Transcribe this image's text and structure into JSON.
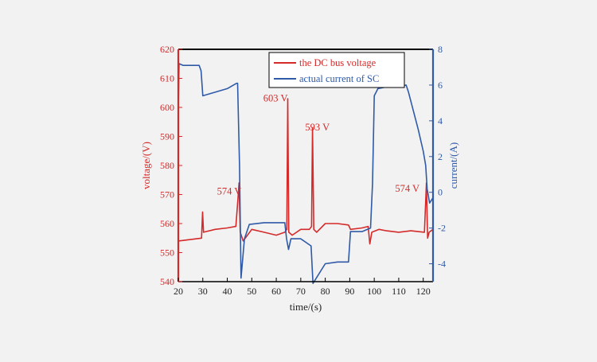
{
  "chart_data": {
    "type": "line",
    "x": {
      "label": "time/(s)",
      "ticks": [
        "20",
        "30",
        "40",
        "50",
        "60",
        "70",
        "80",
        "90",
        "100",
        "110",
        "120"
      ],
      "range": [
        20,
        124
      ]
    },
    "y_left": {
      "label": "voltage/(V)",
      "ticks": [
        "540",
        "550",
        "560",
        "570",
        "580",
        "590",
        "600",
        "610",
        "620"
      ],
      "range": [
        540,
        620
      ],
      "color": "#d42a2a"
    },
    "y_right": {
      "label": "current/(A)",
      "ticks": [
        "-4",
        "-2",
        "0",
        "2",
        "4",
        "6",
        "8"
      ],
      "range": [
        -5,
        8
      ],
      "color": "#2f5aa8"
    },
    "legend": {
      "position": "top-right",
      "items": [
        {
          "label": "the DC bus voltage",
          "color": "#d42a2a"
        },
        {
          "label": "actual current of SC",
          "color": "#2f5aa8"
        }
      ]
    },
    "series": [
      {
        "name": "the DC bus voltage",
        "axis": "left",
        "color": "#d42a2a",
        "x": [
          20,
          29.5,
          29.9,
          30.3,
          35,
          40,
          43.5,
          44.3,
          44.8,
          45.3,
          46.5,
          50,
          55,
          60,
          63.5,
          64.3,
          64.7,
          65.1,
          66.5,
          70,
          73.5,
          74.4,
          74.8,
          75.3,
          76.5,
          80,
          85,
          89.5,
          90.3,
          95,
          97.5,
          98.2,
          99,
          102,
          105,
          110,
          115,
          120.5,
          121.3,
          121.8,
          122.4,
          124
        ],
        "y": [
          554,
          555,
          564,
          557,
          558,
          558.5,
          559,
          568,
          574,
          557,
          554,
          558,
          557,
          556,
          557,
          558,
          603,
          557,
          556,
          558,
          558,
          559,
          593,
          558,
          557,
          560,
          560,
          559.5,
          558,
          558.5,
          559,
          553,
          557,
          558,
          557.5,
          557,
          557.5,
          557,
          574,
          555,
          557,
          558
        ]
      },
      {
        "name": "actual current of SC",
        "axis": "right",
        "color": "#2f5aa8",
        "x": [
          20,
          20.3,
          22,
          28.5,
          29.3,
          30,
          35,
          40,
          43.8,
          44.2,
          45,
          45.6,
          47,
          49,
          55,
          60,
          63.5,
          64.2,
          65,
          66,
          70,
          74.2,
          75,
          80,
          85,
          89.5,
          90.3,
          95,
          98.5,
          99.3,
          100,
          101.5,
          105,
          110,
          113,
          114,
          118,
          120,
          121,
          121.6,
          122.6,
          124
        ],
        "y": [
          4.5,
          7.2,
          7.1,
          7.1,
          6.8,
          5.4,
          5.6,
          5.8,
          6.1,
          6.1,
          1.5,
          -4.8,
          -2.6,
          -1.8,
          -1.7,
          -1.7,
          -1.7,
          -2.6,
          -3.2,
          -2.6,
          -2.6,
          -3.0,
          -5.1,
          -4.0,
          -3.9,
          -3.9,
          -2.2,
          -2.2,
          -2.0,
          0.5,
          5.4,
          5.8,
          5.9,
          5.9,
          6.0,
          5.6,
          3.5,
          2.3,
          1.5,
          0.2,
          -0.6,
          -0.3
        ]
      }
    ],
    "annotations": [
      {
        "text": "574 V",
        "x": 40.8,
        "y": 570
      },
      {
        "text": "603 V",
        "x": 59.7,
        "y": 602
      },
      {
        "text": "593 V",
        "x": 76.8,
        "y": 592
      },
      {
        "text": "574 V",
        "x": 113.5,
        "y": 571
      }
    ],
    "grid": false
  }
}
